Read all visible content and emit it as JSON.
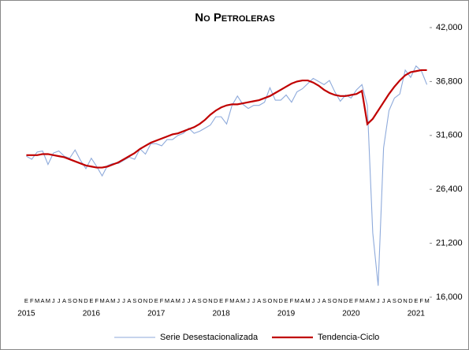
{
  "chart_data": {
    "type": "line",
    "title": "No Petroleras",
    "categories": [
      "E",
      "F",
      "M",
      "A",
      "M",
      "J",
      "J",
      "A",
      "S",
      "O",
      "N",
      "D",
      "E",
      "F",
      "M",
      "A",
      "M",
      "J",
      "J",
      "A",
      "S",
      "O",
      "N",
      "D",
      "E",
      "F",
      "M",
      "A",
      "M",
      "J",
      "J",
      "A",
      "S",
      "O",
      "N",
      "D",
      "E",
      "F",
      "M",
      "A",
      "M",
      "J",
      "J",
      "A",
      "S",
      "O",
      "N",
      "D",
      "E",
      "F",
      "M",
      "A",
      "M",
      "J",
      "J",
      "A",
      "S",
      "O",
      "N",
      "D",
      "E",
      "F",
      "M",
      "A",
      "M",
      "J",
      "J",
      "A",
      "S",
      "O",
      "N",
      "D",
      "E",
      "F",
      "M"
    ],
    "category_groups": [
      "2015",
      null,
      null,
      null,
      null,
      null,
      null,
      null,
      null,
      null,
      null,
      null,
      "2016",
      null,
      null,
      null,
      null,
      null,
      null,
      null,
      null,
      null,
      null,
      null,
      "2017",
      null,
      null,
      null,
      null,
      null,
      null,
      null,
      null,
      null,
      null,
      null,
      "2018",
      null,
      null,
      null,
      null,
      null,
      null,
      null,
      null,
      null,
      null,
      null,
      "2019",
      null,
      null,
      null,
      null,
      null,
      null,
      null,
      null,
      null,
      null,
      null,
      "2020",
      null,
      null,
      null,
      null,
      null,
      null,
      null,
      null,
      null,
      null,
      null,
      "2021",
      null,
      null
    ],
    "series": [
      {
        "name": "Serie Desestacionalizada",
        "color": "#8eaadb",
        "values": [
          29600,
          29300,
          30000,
          30100,
          28800,
          29900,
          30100,
          29600,
          29400,
          30200,
          29200,
          28400,
          29400,
          28600,
          27700,
          28700,
          28900,
          28900,
          29200,
          29500,
          29300,
          30300,
          29800,
          30800,
          30800,
          30600,
          31200,
          31200,
          31600,
          31800,
          32300,
          31800,
          32000,
          32300,
          32600,
          33400,
          33400,
          32700,
          34500,
          35400,
          34600,
          34200,
          34500,
          34500,
          34800,
          36200,
          35000,
          35000,
          35500,
          34800,
          35800,
          36100,
          36600,
          37100,
          36800,
          36500,
          36900,
          35800,
          34900,
          35500,
          35200,
          36000,
          36500,
          34500,
          22200,
          17100,
          30400,
          34000,
          35200,
          35600,
          37900,
          37200,
          38300,
          37800,
          36500
        ]
      },
      {
        "name": "Tendencia-Ciclo",
        "color": "#c00000",
        "values": [
          29700,
          29700,
          29700,
          29800,
          29800,
          29700,
          29600,
          29500,
          29300,
          29100,
          28900,
          28700,
          28600,
          28500,
          28500,
          28600,
          28800,
          29000,
          29300,
          29600,
          29900,
          30300,
          30600,
          30900,
          31100,
          31300,
          31500,
          31700,
          31800,
          32000,
          32200,
          32400,
          32700,
          33100,
          33600,
          34000,
          34300,
          34500,
          34600,
          34600,
          34700,
          34800,
          34900,
          35000,
          35200,
          35400,
          35700,
          36000,
          36300,
          36600,
          36800,
          36900,
          36900,
          36700,
          36400,
          36000,
          35700,
          35500,
          35400,
          35400,
          35500,
          35600,
          35900,
          32700,
          33200,
          34000,
          34800,
          35600,
          36300,
          36900,
          37400,
          37700,
          37800,
          37900,
          37900
        ]
      }
    ],
    "ylim": [
      16000,
      42000
    ],
    "yticks": [
      {
        "value": 16000,
        "label": "16,000"
      },
      {
        "value": 21200,
        "label": "21,200"
      },
      {
        "value": 26400,
        "label": "26,400"
      },
      {
        "value": 31600,
        "label": "31,600"
      },
      {
        "value": 36800,
        "label": "36,800"
      },
      {
        "value": 42000,
        "label": "42,000"
      }
    ]
  }
}
